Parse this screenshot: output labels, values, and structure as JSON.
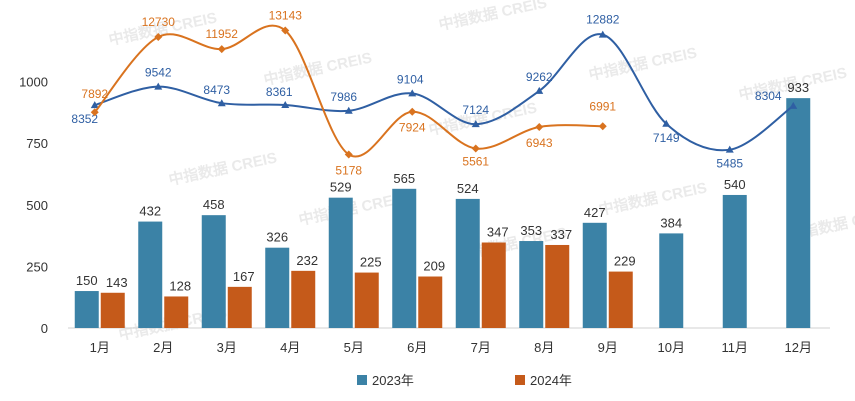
{
  "chart_data": {
    "type": "bar",
    "categories": [
      "1月",
      "2月",
      "3月",
      "4月",
      "5月",
      "6月",
      "7月",
      "8月",
      "9月",
      "10月",
      "11月",
      "12月"
    ],
    "series": [
      {
        "name": "2023年",
        "values": [
          150,
          432,
          458,
          326,
          529,
          565,
          524,
          353,
          427,
          384,
          540,
          933
        ]
      },
      {
        "name": "2024年",
        "values": [
          143,
          128,
          167,
          232,
          225,
          209,
          347,
          337,
          229,
          null,
          null,
          null
        ]
      }
    ],
    "lines": [
      {
        "values": [
          8352,
          9542,
          8473,
          8361,
          7986,
          9104,
          7124,
          9262,
          12882,
          7149,
          5485,
          8304
        ]
      },
      {
        "values": [
          7892,
          12730,
          11952,
          13143,
          5178,
          7924,
          5561,
          6943,
          6991,
          null,
          null,
          null
        ]
      }
    ],
    "y_ticks": [
      "0",
      "250",
      "500",
      "750",
      "1000"
    ],
    "ylim": [
      0,
      1100
    ],
    "grid": false,
    "legend_position": "bottom"
  },
  "colors": {
    "series_2023": "#3b82a6",
    "series_2024": "#c55a1a",
    "line_2023": "#2f5fa3",
    "line_2024": "#d9731f"
  },
  "watermark": "中指数据 CREIS",
  "legend": {
    "item_2023": "2023年",
    "item_2024": "2024年"
  }
}
